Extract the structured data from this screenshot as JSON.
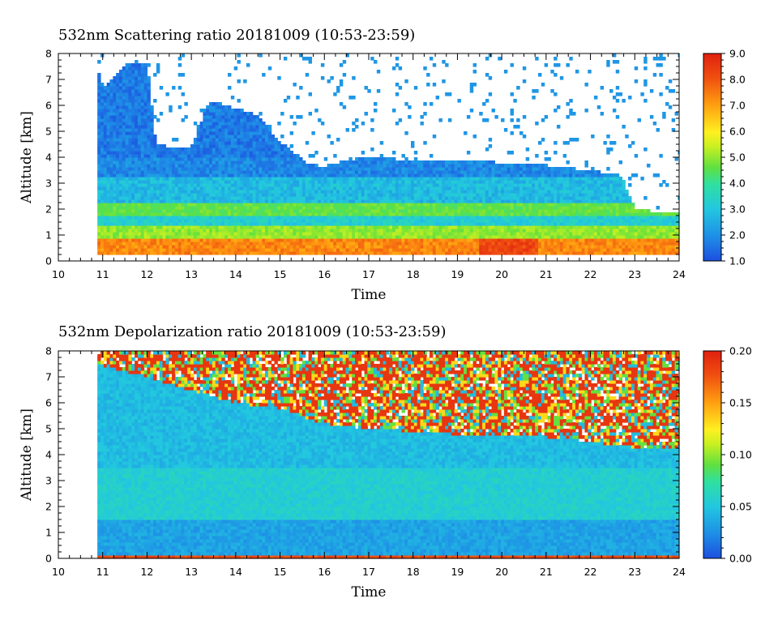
{
  "chart_data": [
    {
      "type": "heatmap",
      "title": "532nm Scattering ratio  20181009 (10:53-23:59)",
      "xlabel": "Time",
      "ylabel": "Altitude [km]",
      "xlim": [
        10,
        24
      ],
      "ylim": [
        0,
        8
      ],
      "xticks": [
        "10",
        "11",
        "12",
        "13",
        "14",
        "15",
        "16",
        "17",
        "18",
        "19",
        "20",
        "21",
        "22",
        "23",
        "24"
      ],
      "yticks": [
        "0",
        "1",
        "2",
        "3",
        "4",
        "5",
        "6",
        "7",
        "8"
      ],
      "data_start": 10.88,
      "colorbar": {
        "range": [
          1.0,
          9.0
        ],
        "ticks": [
          "1.0",
          "2.0",
          "3.0",
          "4.0",
          "5.0",
          "6.0",
          "7.0",
          "8.0",
          "9.0"
        ],
        "colors": [
          "#1d4fe0",
          "#1e8fe6",
          "#22c7e0",
          "#2fe0a0",
          "#5fe040",
          "#c8f020",
          "#fff020",
          "#ffa010",
          "#f05010",
          "#e02010"
        ]
      },
      "cloud_top_km": [
        [
          10.88,
          7.5
        ],
        [
          11.0,
          6.6
        ],
        [
          11.5,
          7.6
        ],
        [
          12.0,
          7.6
        ],
        [
          12.2,
          4.5
        ],
        [
          12.5,
          4.4
        ],
        [
          13.0,
          4.4
        ],
        [
          13.4,
          6.2
        ],
        [
          14.0,
          5.9
        ],
        [
          14.5,
          5.6
        ],
        [
          15.0,
          4.6
        ],
        [
          15.6,
          3.8
        ],
        [
          16.0,
          3.6
        ],
        [
          16.5,
          3.9
        ],
        [
          17.0,
          4.0
        ],
        [
          18.0,
          3.9
        ],
        [
          19.0,
          3.9
        ],
        [
          20.0,
          3.8
        ],
        [
          21.0,
          3.7
        ],
        [
          22.0,
          3.5
        ],
        [
          22.7,
          3.3
        ],
        [
          23.0,
          2.0
        ],
        [
          23.5,
          1.9
        ],
        [
          24.0,
          1.9
        ]
      ],
      "layers": [
        {
          "bottom_km": 0.3,
          "top_km": 0.9,
          "value": 7.5
        },
        {
          "bottom_km": 0.9,
          "top_km": 1.4,
          "value": 5.0
        },
        {
          "bottom_km": 1.4,
          "top_km": 1.8,
          "value": 3.0
        },
        {
          "bottom_km": 1.8,
          "top_km": 2.2,
          "value": 4.5
        },
        {
          "bottom_km": 2.2,
          "top_km": 3.3,
          "value": 2.6
        },
        {
          "bottom_km": 3.3,
          "top_km": 4.0,
          "value": 1.8
        }
      ]
    },
    {
      "type": "heatmap",
      "title": "532nm Depolarization ratio  20181009 (10:53-23:59)",
      "xlabel": "Time",
      "ylabel": "Altitude [km]",
      "xlim": [
        10,
        24
      ],
      "ylim": [
        0,
        8
      ],
      "xticks": [
        "10",
        "11",
        "12",
        "13",
        "14",
        "15",
        "16",
        "17",
        "18",
        "19",
        "20",
        "21",
        "22",
        "23",
        "24"
      ],
      "yticks": [
        "0",
        "1",
        "2",
        "3",
        "4",
        "5",
        "6",
        "7",
        "8"
      ],
      "data_start": 10.88,
      "colorbar": {
        "range": [
          0.0,
          0.2
        ],
        "ticks": [
          "0.00",
          "0.05",
          "0.10",
          "0.15",
          "0.20"
        ],
        "colors": [
          "#1d4fe0",
          "#1e8fe6",
          "#22c7e0",
          "#2fe0a0",
          "#5fe040",
          "#c8f020",
          "#fff020",
          "#ffa010",
          "#f05010",
          "#e02010"
        ]
      },
      "noisy_top_km": [
        [
          10.88,
          7.5
        ],
        [
          12.0,
          7.0
        ],
        [
          13.0,
          6.5
        ],
        [
          14.0,
          6.0
        ],
        [
          15.0,
          5.8
        ],
        [
          16.0,
          5.2
        ],
        [
          17.0,
          5.0
        ],
        [
          18.0,
          4.9
        ],
        [
          19.0,
          4.8
        ],
        [
          20.0,
          4.7
        ],
        [
          21.0,
          4.7
        ],
        [
          22.0,
          4.5
        ],
        [
          23.0,
          4.3
        ],
        [
          24.0,
          4.2
        ]
      ],
      "layers": [
        {
          "bottom_km": 0.0,
          "top_km": 0.1,
          "value": 0.18
        },
        {
          "bottom_km": 0.1,
          "top_km": 1.5,
          "value": 0.03
        },
        {
          "bottom_km": 1.5,
          "top_km": 3.5,
          "value": 0.05
        },
        {
          "bottom_km": 3.5,
          "top_km": 4.5,
          "value": 0.04
        }
      ]
    }
  ]
}
